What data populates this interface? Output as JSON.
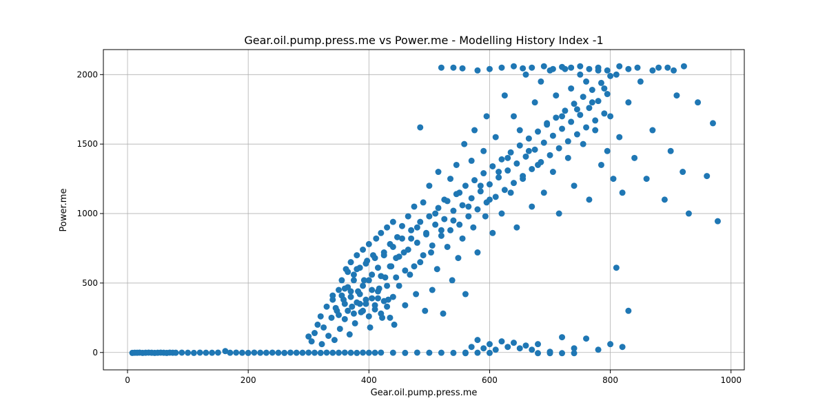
{
  "chart_data": {
    "type": "scatter",
    "title": "Gear.oil.pump.press.me vs Power.me - Modelling History Index -1",
    "xlabel": "Gear.oil.pump.press.me",
    "ylabel": "Power.me",
    "xlim": [
      -40,
      1022
    ],
    "ylim": [
      -125,
      2180
    ],
    "xticks": [
      0,
      200,
      400,
      600,
      800,
      1000
    ],
    "yticks": [
      0,
      500,
      1000,
      1500,
      2000
    ],
    "grid": true,
    "marker_color": "#1f77b4",
    "points": [
      [
        8,
        -3
      ],
      [
        12,
        -2
      ],
      [
        16,
        -2
      ],
      [
        20,
        -1
      ],
      [
        25,
        -3
      ],
      [
        30,
        -2
      ],
      [
        35,
        -1
      ],
      [
        40,
        -2
      ],
      [
        45,
        -3
      ],
      [
        50,
        -2
      ],
      [
        55,
        -1
      ],
      [
        60,
        -2
      ],
      [
        65,
        -3
      ],
      [
        70,
        -1
      ],
      [
        75,
        -2
      ],
      [
        80,
        -2
      ],
      [
        90,
        -1
      ],
      [
        100,
        -2
      ],
      [
        110,
        -3
      ],
      [
        120,
        -1
      ],
      [
        130,
        -2
      ],
      [
        140,
        -2
      ],
      [
        150,
        -1
      ],
      [
        162,
        10
      ],
      [
        170,
        -2
      ],
      [
        180,
        -1
      ],
      [
        190,
        -2
      ],
      [
        200,
        -3
      ],
      [
        210,
        -1
      ],
      [
        220,
        -2
      ],
      [
        230,
        -2
      ],
      [
        240,
        -1
      ],
      [
        250,
        -2
      ],
      [
        260,
        -3
      ],
      [
        270,
        -1
      ],
      [
        280,
        -2
      ],
      [
        290,
        -2
      ],
      [
        300,
        -1
      ],
      [
        310,
        -2
      ],
      [
        320,
        -3
      ],
      [
        330,
        -1
      ],
      [
        340,
        -2
      ],
      [
        350,
        -2
      ],
      [
        360,
        -1
      ],
      [
        370,
        -2
      ],
      [
        380,
        -3
      ],
      [
        390,
        -1
      ],
      [
        400,
        -2
      ],
      [
        410,
        -2
      ],
      [
        420,
        -1
      ],
      [
        440,
        -2
      ],
      [
        460,
        -3
      ],
      [
        480,
        -1
      ],
      [
        500,
        -2
      ],
      [
        520,
        -2
      ],
      [
        540,
        -3
      ],
      [
        560,
        -1
      ],
      [
        580,
        -2
      ],
      [
        600,
        -3
      ],
      [
        300,
        115
      ],
      [
        305,
        80
      ],
      [
        310,
        140
      ],
      [
        315,
        200
      ],
      [
        320,
        260
      ],
      [
        322,
        60
      ],
      [
        325,
        180
      ],
      [
        330,
        330
      ],
      [
        333,
        120
      ],
      [
        338,
        250
      ],
      [
        340,
        410
      ],
      [
        343,
        90
      ],
      [
        347,
        300
      ],
      [
        350,
        450
      ],
      [
        352,
        170
      ],
      [
        355,
        520
      ],
      [
        358,
        380
      ],
      [
        360,
        240
      ],
      [
        362,
        600
      ],
      [
        365,
        470
      ],
      [
        368,
        130
      ],
      [
        370,
        650
      ],
      [
        372,
        330
      ],
      [
        375,
        560
      ],
      [
        377,
        210
      ],
      [
        380,
        700
      ],
      [
        382,
        440
      ],
      [
        385,
        610
      ],
      [
        387,
        290
      ],
      [
        390,
        740
      ],
      [
        392,
        520
      ],
      [
        395,
        380
      ],
      [
        397,
        660
      ],
      [
        400,
        780
      ],
      [
        402,
        180
      ],
      [
        405,
        560
      ],
      [
        407,
        700
      ],
      [
        410,
        340
      ],
      [
        412,
        820
      ],
      [
        415,
        610
      ],
      [
        417,
        460
      ],
      [
        420,
        860
      ],
      [
        422,
        250
      ],
      [
        425,
        720
      ],
      [
        427,
        540
      ],
      [
        430,
        900
      ],
      [
        432,
        380
      ],
      [
        435,
        780
      ],
      [
        437,
        620
      ],
      [
        440,
        940
      ],
      [
        442,
        200
      ],
      [
        445,
        680
      ],
      [
        447,
        830
      ],
      [
        450,
        480
      ],
      [
        455,
        910
      ],
      [
        458,
        720
      ],
      [
        460,
        340
      ],
      [
        465,
        980
      ],
      [
        468,
        560
      ],
      [
        470,
        820
      ],
      [
        475,
        1050
      ],
      [
        478,
        420
      ],
      [
        480,
        900
      ],
      [
        485,
        650
      ],
      [
        490,
        1080
      ],
      [
        493,
        300
      ],
      [
        495,
        850
      ],
      [
        500,
        1200
      ],
      [
        503,
        720
      ],
      [
        505,
        450
      ],
      [
        510,
        1000
      ],
      [
        513,
        600
      ],
      [
        515,
        1300
      ],
      [
        520,
        880
      ],
      [
        523,
        280
      ],
      [
        525,
        1100
      ],
      [
        530,
        760
      ],
      [
        535,
        1250
      ],
      [
        538,
        520
      ],
      [
        540,
        950
      ],
      [
        545,
        1350
      ],
      [
        548,
        680
      ],
      [
        550,
        1150
      ],
      [
        555,
        820
      ],
      [
        558,
        1500
      ],
      [
        560,
        420
      ],
      [
        565,
        1050
      ],
      [
        570,
        1380
      ],
      [
        573,
        900
      ],
      [
        575,
        1600
      ],
      [
        580,
        720
      ],
      [
        585,
        1200
      ],
      [
        590,
        1450
      ],
      [
        593,
        980
      ],
      [
        595,
        1700
      ],
      [
        600,
        1100
      ],
      [
        605,
        860
      ],
      [
        610,
        1550
      ],
      [
        615,
        1300
      ],
      [
        620,
        1000
      ],
      [
        625,
        1850
      ],
      [
        630,
        1400
      ],
      [
        635,
        1150
      ],
      [
        640,
        1700
      ],
      [
        645,
        900
      ],
      [
        650,
        1600
      ],
      [
        655,
        1250
      ],
      [
        660,
        2000
      ],
      [
        665,
        1450
      ],
      [
        670,
        1050
      ],
      [
        675,
        1800
      ],
      [
        680,
        1350
      ],
      [
        685,
        1950
      ],
      [
        690,
        1150
      ],
      [
        695,
        1650
      ],
      [
        700,
        2030
      ],
      [
        705,
        1300
      ],
      [
        710,
        1850
      ],
      [
        715,
        1000
      ],
      [
        720,
        1700
      ],
      [
        725,
        2040
      ],
      [
        730,
        1400
      ],
      [
        735,
        1900
      ],
      [
        740,
        1200
      ],
      [
        745,
        1750
      ],
      [
        750,
        2000
      ],
      [
        755,
        1500
      ],
      [
        760,
        1950
      ],
      [
        765,
        1100
      ],
      [
        770,
        1800
      ],
      [
        775,
        1600
      ],
      [
        780,
        2030
      ],
      [
        785,
        1350
      ],
      [
        790,
        1900
      ],
      [
        795,
        1450
      ],
      [
        800,
        1700
      ],
      [
        805,
        1250
      ],
      [
        810,
        2000
      ],
      [
        815,
        1550
      ],
      [
        820,
        1150
      ],
      [
        830,
        1800
      ],
      [
        840,
        1400
      ],
      [
        850,
        1950
      ],
      [
        860,
        1250
      ],
      [
        870,
        1600
      ],
      [
        880,
        2050
      ],
      [
        890,
        1100
      ],
      [
        900,
        1450
      ],
      [
        910,
        1850
      ],
      [
        920,
        1300
      ],
      [
        930,
        1000
      ],
      [
        945,
        1800
      ],
      [
        960,
        1270
      ],
      [
        970,
        1650
      ],
      [
        978,
        945
      ],
      [
        360,
        460
      ],
      [
        365,
        580
      ],
      [
        370,
        400
      ],
      [
        375,
        520
      ],
      [
        380,
        600
      ],
      [
        385,
        350
      ],
      [
        390,
        480
      ],
      [
        395,
        640
      ],
      [
        400,
        520
      ],
      [
        405,
        450
      ],
      [
        410,
        680
      ],
      [
        415,
        390
      ],
      [
        420,
        550
      ],
      [
        425,
        700
      ],
      [
        430,
        480
      ],
      [
        435,
        620
      ],
      [
        440,
        760
      ],
      [
        445,
        540
      ],
      [
        450,
        690
      ],
      [
        455,
        820
      ],
      [
        460,
        590
      ],
      [
        465,
        740
      ],
      [
        470,
        880
      ],
      [
        475,
        620
      ],
      [
        480,
        790
      ],
      [
        485,
        940
      ],
      [
        490,
        700
      ],
      [
        495,
        860
      ],
      [
        500,
        980
      ],
      [
        505,
        770
      ],
      [
        510,
        920
      ],
      [
        515,
        1040
      ],
      [
        520,
        840
      ],
      [
        525,
        960
      ],
      [
        530,
        1090
      ],
      [
        535,
        880
      ],
      [
        540,
        1020
      ],
      [
        545,
        1140
      ],
      [
        550,
        920
      ],
      [
        555,
        1060
      ],
      [
        560,
        1200
      ],
      [
        565,
        980
      ],
      [
        570,
        1110
      ],
      [
        575,
        1240
      ],
      [
        580,
        1030
      ],
      [
        585,
        1160
      ],
      [
        590,
        1290
      ],
      [
        595,
        1080
      ],
      [
        600,
        1210
      ],
      [
        605,
        1340
      ],
      [
        610,
        1120
      ],
      [
        615,
        1260
      ],
      [
        620,
        1390
      ],
      [
        625,
        1170
      ],
      [
        630,
        1310
      ],
      [
        635,
        1440
      ],
      [
        640,
        1220
      ],
      [
        645,
        1360
      ],
      [
        650,
        1490
      ],
      [
        655,
        1270
      ],
      [
        660,
        1410
      ],
      [
        665,
        1540
      ],
      [
        670,
        1320
      ],
      [
        675,
        1460
      ],
      [
        680,
        1590
      ],
      [
        685,
        1370
      ],
      [
        690,
        1510
      ],
      [
        695,
        1640
      ],
      [
        700,
        1420
      ],
      [
        705,
        1560
      ],
      [
        710,
        1690
      ],
      [
        715,
        1470
      ],
      [
        720,
        1610
      ],
      [
        725,
        1740
      ],
      [
        730,
        1520
      ],
      [
        735,
        1660
      ],
      [
        740,
        1790
      ],
      [
        745,
        1570
      ],
      [
        750,
        1710
      ],
      [
        755,
        1840
      ],
      [
        760,
        1620
      ],
      [
        765,
        1760
      ],
      [
        770,
        1890
      ],
      [
        775,
        1670
      ],
      [
        780,
        1810
      ],
      [
        785,
        1940
      ],
      [
        790,
        1720
      ],
      [
        795,
        1860
      ],
      [
        800,
        1990
      ],
      [
        340,
        380
      ],
      [
        345,
        320
      ],
      [
        350,
        270
      ],
      [
        355,
        410
      ],
      [
        360,
        350
      ],
      [
        365,
        300
      ],
      [
        370,
        440
      ],
      [
        375,
        280
      ],
      [
        380,
        360
      ],
      [
        385,
        420
      ],
      [
        390,
        300
      ],
      [
        395,
        350
      ],
      [
        400,
        260
      ],
      [
        405,
        390
      ],
      [
        410,
        310
      ],
      [
        415,
        440
      ],
      [
        420,
        280
      ],
      [
        425,
        370
      ],
      [
        430,
        330
      ],
      [
        435,
        250
      ],
      [
        440,
        400
      ],
      [
        560,
        -5
      ],
      [
        570,
        40
      ],
      [
        580,
        90
      ],
      [
        590,
        30
      ],
      [
        600,
        60
      ],
      [
        610,
        20
      ],
      [
        620,
        80
      ],
      [
        630,
        40
      ],
      [
        640,
        70
      ],
      [
        650,
        30
      ],
      [
        660,
        50
      ],
      [
        670,
        20
      ],
      [
        680,
        60
      ],
      [
        700,
        5
      ],
      [
        720,
        110
      ],
      [
        740,
        30
      ],
      [
        760,
        100
      ],
      [
        780,
        20
      ],
      [
        800,
        60
      ],
      [
        820,
        40
      ],
      [
        830,
        300
      ],
      [
        810,
        610
      ],
      [
        680,
        -5
      ],
      [
        700,
        -5
      ],
      [
        720,
        -5
      ],
      [
        740,
        -5
      ],
      [
        485,
        1620
      ],
      [
        520,
        2050
      ],
      [
        540,
        2050
      ],
      [
        555,
        2045
      ],
      [
        580,
        2030
      ],
      [
        600,
        2040
      ],
      [
        620,
        2050
      ],
      [
        640,
        2060
      ],
      [
        655,
        2045
      ],
      [
        670,
        2050
      ],
      [
        690,
        2060
      ],
      [
        705,
        2040
      ],
      [
        720,
        2055
      ],
      [
        735,
        2050
      ],
      [
        750,
        2060
      ],
      [
        765,
        2040
      ],
      [
        780,
        2050
      ],
      [
        795,
        2030
      ],
      [
        815,
        2060
      ],
      [
        830,
        2040
      ],
      [
        845,
        2050
      ],
      [
        870,
        2030
      ],
      [
        895,
        2050
      ],
      [
        905,
        2030
      ],
      [
        922,
        2060
      ]
    ]
  }
}
